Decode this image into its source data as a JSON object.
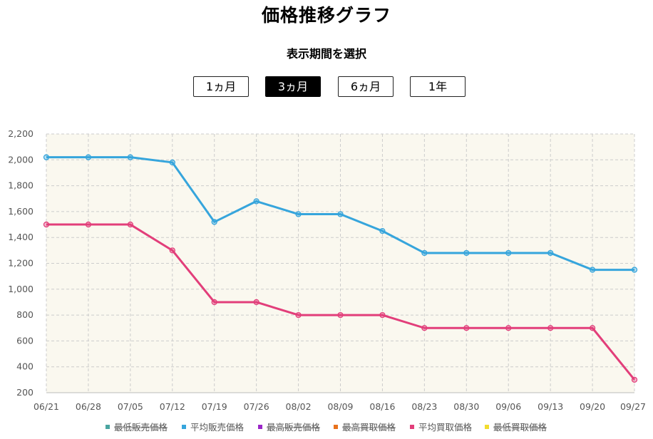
{
  "header": {
    "title": "価格推移グラフ",
    "period_label": "表示期間を選択"
  },
  "period_buttons": [
    {
      "label": "1ヵ月",
      "active": false
    },
    {
      "label": "3ヵ月",
      "active": true
    },
    {
      "label": "6ヵ月",
      "active": false
    },
    {
      "label": "1年",
      "active": false
    }
  ],
  "colors": {
    "plot_background": "#faf8ef",
    "grid": "#cccccc"
  },
  "chart_data": {
    "type": "line",
    "title": "価格推移グラフ",
    "xlabel": "",
    "ylabel": "",
    "categories": [
      "06/21",
      "06/28",
      "07/05",
      "07/12",
      "07/19",
      "07/26",
      "08/02",
      "08/09",
      "08/16",
      "08/23",
      "08/30",
      "09/06",
      "09/13",
      "09/20",
      "09/27"
    ],
    "ylim": [
      200,
      2200
    ],
    "yticks": [
      200,
      400,
      600,
      800,
      1000,
      1200,
      1400,
      1600,
      1800,
      2000,
      2200
    ],
    "ytick_labels": [
      "200",
      "400",
      "600",
      "800",
      "1,000",
      "1,200",
      "1,400",
      "1,600",
      "1,800",
      "2,000",
      "2,200"
    ],
    "grid": true,
    "legend_position": "bottom",
    "series": [
      {
        "name": "最低販売価格",
        "color": "#4aa5a0",
        "values": null
      },
      {
        "name": "平均販売価格",
        "color": "#36a5dc",
        "values": [
          2020,
          2020,
          2020,
          1980,
          1520,
          1680,
          1580,
          1580,
          1450,
          1280,
          1280,
          1280,
          1280,
          1150,
          1150
        ]
      },
      {
        "name": "最高販売価格",
        "color": "#9b26c8",
        "values": null
      },
      {
        "name": "最高買取価格",
        "color": "#e8721c",
        "values": null
      },
      {
        "name": "平均買取価格",
        "color": "#e23e7a",
        "values": [
          1500,
          1500,
          1500,
          1300,
          900,
          900,
          800,
          800,
          800,
          700,
          700,
          700,
          700,
          700,
          300
        ]
      },
      {
        "name": "最低買取価格",
        "color": "#f2dc2e",
        "values": null
      }
    ]
  }
}
